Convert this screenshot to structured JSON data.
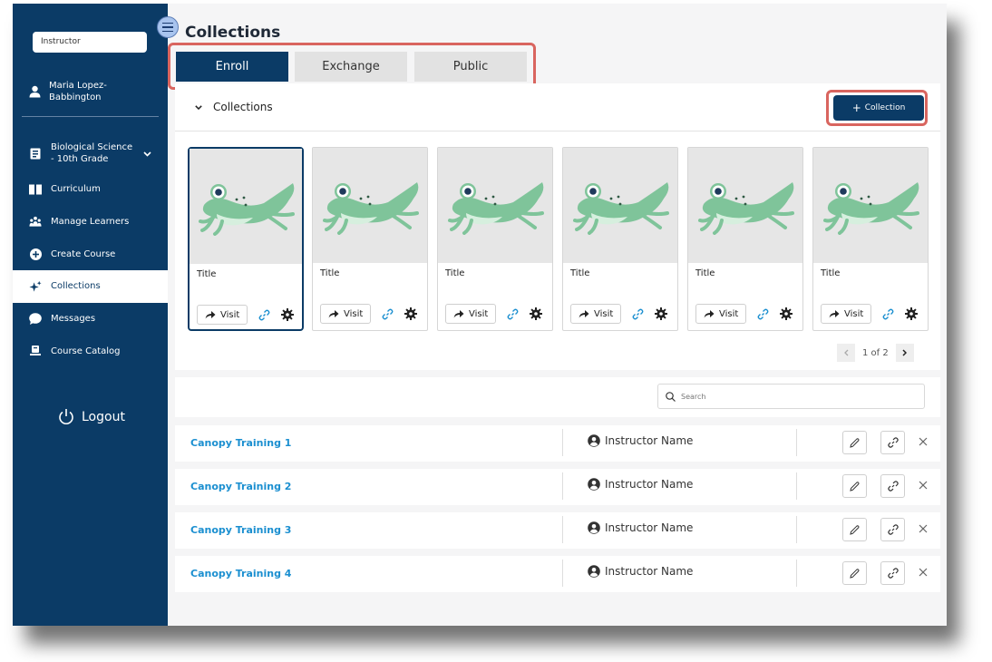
{
  "sidebar": {
    "role": "Instructor",
    "user_name": "Maria Lopez-Babbington",
    "course": "Biological Science - 10th Grade",
    "items": [
      {
        "label": "Curriculum",
        "icon": "book-icon"
      },
      {
        "label": "Manage Learners",
        "icon": "learners-icon"
      },
      {
        "label": "Create Course",
        "icon": "plus-circle-icon"
      },
      {
        "label": "Collections",
        "icon": "sparkle-icon",
        "active": true
      },
      {
        "label": "Messages",
        "icon": "chat-bubble-icon"
      },
      {
        "label": "Course Catalog",
        "icon": "catalog-icon"
      }
    ],
    "logout": "Logout"
  },
  "page": {
    "title": "Collections",
    "tabs": [
      "Enroll",
      "Exchange",
      "Public"
    ],
    "active_tab": "Enroll",
    "section_label": "Collections",
    "add_button": "Collection"
  },
  "cards": [
    {
      "title": "Title",
      "visit": "Visit"
    },
    {
      "title": "Title",
      "visit": "Visit"
    },
    {
      "title": "Title",
      "visit": "Visit"
    },
    {
      "title": "Title",
      "visit": "Visit"
    },
    {
      "title": "Title",
      "visit": "Visit"
    },
    {
      "title": "Title",
      "visit": "Visit"
    }
  ],
  "pager": {
    "text": "1 of 2"
  },
  "search": {
    "placeholder": "Search"
  },
  "rows": [
    {
      "name": "Canopy Training 1",
      "instructor": "Instructor Name"
    },
    {
      "name": "Canopy Training 2",
      "instructor": "Instructor Name"
    },
    {
      "name": "Canopy Training 3",
      "instructor": "Instructor Name"
    },
    {
      "name": "Canopy Training 4",
      "instructor": "Instructor Name"
    }
  ],
  "colors": {
    "primary": "#0b3b66",
    "highlight": "#d9655f",
    "link": "#1b8fd0",
    "frog": "#7fc49a"
  }
}
